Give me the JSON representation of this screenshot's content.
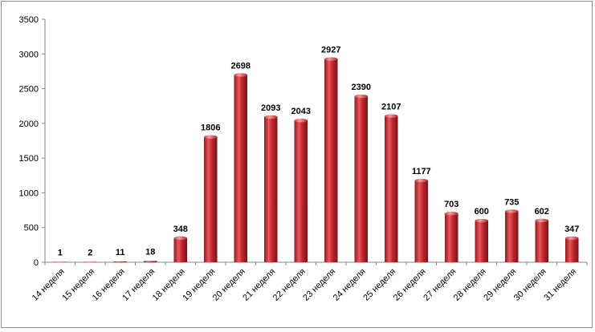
{
  "chart_data": {
    "type": "bar",
    "title": "",
    "xlabel": "",
    "ylabel": "",
    "ylim": [
      0,
      3500
    ],
    "yticks": [
      0,
      500,
      1000,
      1500,
      2000,
      2500,
      3000,
      3500
    ],
    "grid": false,
    "legend": "none",
    "categories": [
      "14 неделя",
      "15 неделя",
      "16 неделя",
      "17 неделя",
      "18 неделя",
      "19 неделя",
      "20 неделя",
      "21 неделя",
      "22 неделя",
      "23 неделя",
      "24 неделя",
      "25 неделя",
      "26 неделя",
      "27 неделя",
      "28 неделя",
      "29 неделя",
      "30 неделя",
      "31 неделя"
    ],
    "values": [
      1,
      2,
      11,
      18,
      348,
      1806,
      2698,
      2093,
      2043,
      2927,
      2390,
      2107,
      1177,
      703,
      600,
      735,
      602,
      347
    ],
    "colors": {
      "bar": "#c0272d",
      "bar_light": "#e8575c",
      "bar_dark": "#8e1a1e"
    }
  }
}
